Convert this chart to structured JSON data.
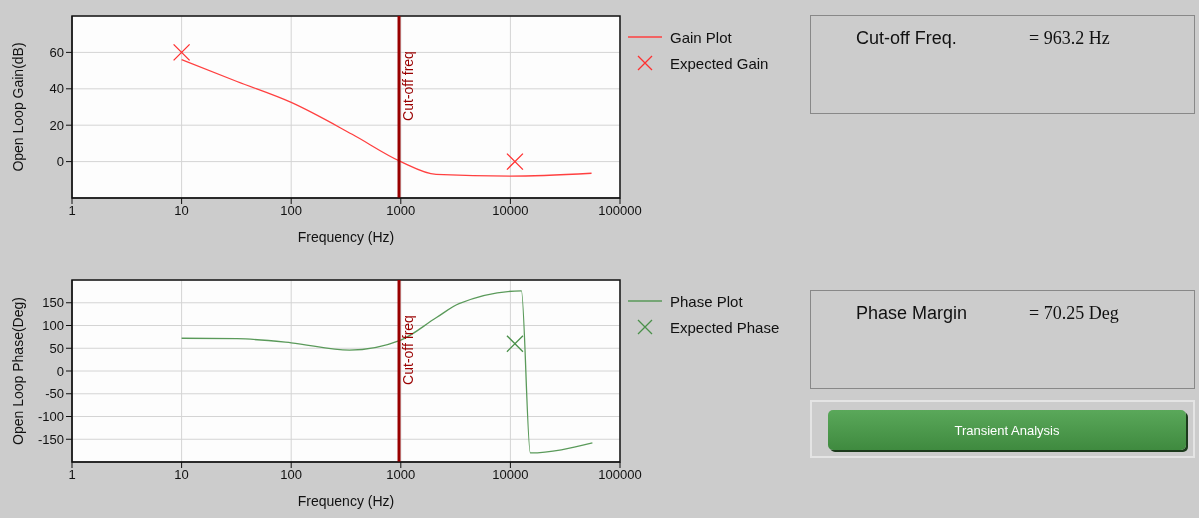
{
  "chart_data": [
    {
      "type": "line",
      "xlabel": "Frequency (Hz)",
      "ylabel": "Open Loop Gain(dB)",
      "log": "x",
      "xlim": [
        1,
        100000
      ],
      "xticks": [
        1,
        10,
        100,
        1000,
        10000,
        100000
      ],
      "ylim": [
        -20,
        80
      ],
      "yticks": [
        0,
        20,
        40,
        60
      ],
      "grid": true,
      "legend": "right",
      "series": [
        {
          "name": "Gain Plot",
          "type": "line",
          "color": "#ff4040",
          "marker": "none",
          "x": [
            10,
            32,
            100,
            360,
            1000,
            2100,
            10000,
            55000
          ],
          "values": [
            56,
            44,
            32.5,
            15,
            0,
            -7,
            -8,
            -6.4
          ]
        },
        {
          "name": "Expected Gain",
          "type": "scatter",
          "color": "#ff3030",
          "marker": "cross",
          "x": [
            10,
            11000
          ],
          "values": [
            60,
            0
          ]
        }
      ],
      "ref_lines": [
        {
          "axis": "x",
          "value": 963.2,
          "label": "Cut-off freq",
          "color": "#990000"
        }
      ]
    },
    {
      "type": "line",
      "xlabel": "Frequency (Hz)",
      "ylabel": "Open Loop Phase(Deg)",
      "log": "x",
      "xlim": [
        1,
        100000
      ],
      "xticks": [
        1,
        10,
        100,
        1000,
        10000,
        100000
      ],
      "ylim": [
        -200,
        200
      ],
      "yticks": [
        -150,
        -100,
        -50,
        0,
        50,
        100,
        150
      ],
      "grid": true,
      "legend": "right",
      "series": [
        {
          "name": "Phase Plot",
          "type": "line",
          "color": "#5a9a5a",
          "marker": "none",
          "x": [
            10,
            32,
            100,
            340,
            1000,
            2100,
            3400,
            12600,
            15200,
            56000
          ],
          "values": [
            72,
            71,
            62,
            46,
            68,
            117,
            148,
            176,
            -180,
            -158
          ]
        },
        {
          "name": "Expected Phase",
          "type": "scatter",
          "color": "#4a904a",
          "marker": "cross",
          "x": [
            11000
          ],
          "values": [
            60
          ]
        }
      ],
      "ref_lines": [
        {
          "axis": "x",
          "value": 963.2,
          "label": "Cut-off freq",
          "color": "#990000"
        }
      ]
    },
    {
      "type": "other",
      "annotations": [
        "Cut-off Freq.",
        "= 963.2 Hz"
      ]
    },
    {
      "type": "other",
      "annotations": [
        "Phase Margin",
        "= 70.25 Deg"
      ]
    },
    {
      "type": "other",
      "annotations": [
        "Transient Analysis"
      ]
    }
  ]
}
